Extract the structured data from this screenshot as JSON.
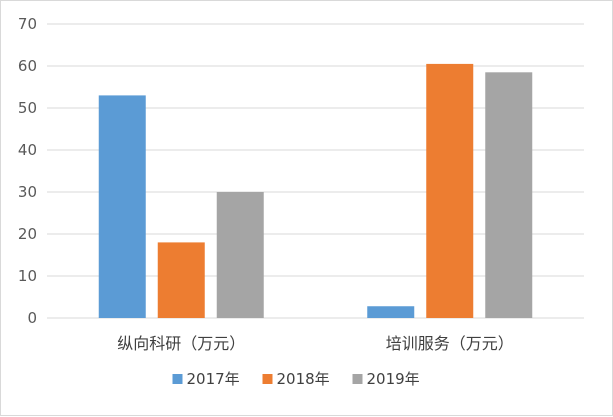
{
  "chart_data": {
    "type": "bar",
    "categories": [
      "纵向科研（万元）",
      "培训服务（万元）"
    ],
    "series": [
      {
        "name": "2017年",
        "color": "#5b9bd5",
        "values": [
          53,
          2.8
        ]
      },
      {
        "name": "2018年",
        "color": "#ed7d31",
        "values": [
          18,
          60.5
        ]
      },
      {
        "name": "2019年",
        "color": "#a5a5a5",
        "values": [
          30,
          58.5
        ]
      }
    ],
    "ylim": [
      0,
      70
    ],
    "yticks": [
      0,
      10,
      20,
      30,
      40,
      50,
      60,
      70
    ],
    "grid": true,
    "legend_position": "bottom",
    "gridline_color": "#d9d9d9"
  }
}
